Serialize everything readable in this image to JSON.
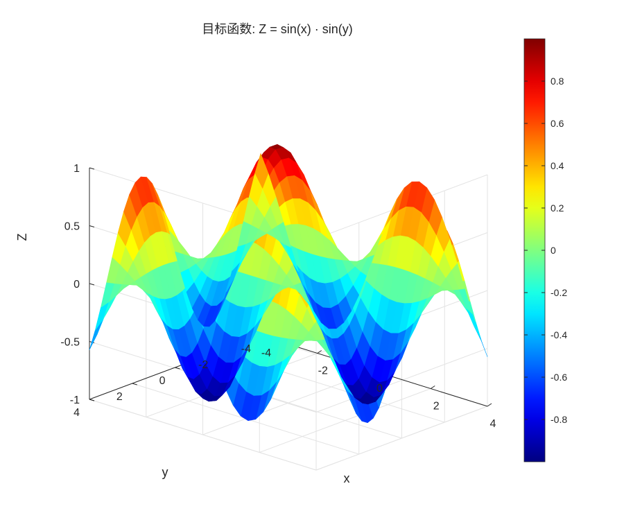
{
  "chart_data": {
    "type": "surface",
    "title": "目标函数: Z = sin(x) · sin(y)",
    "function": "Z = sin(x) · sin(y)",
    "xlabel": "x",
    "ylabel": "y",
    "zlabel": "Z",
    "xlim": [
      -4,
      4
    ],
    "ylim": [
      -4,
      4
    ],
    "zlim": [
      -1,
      1
    ],
    "x_ticks": [
      -4,
      -2,
      0,
      2,
      4
    ],
    "y_ticks": [
      -4,
      -2,
      0,
      2,
      4
    ],
    "z_ticks": [
      -1,
      -0.5,
      0,
      0.5,
      1
    ],
    "x_tick_labels": [
      "-4",
      "-2",
      "0",
      "2",
      "4"
    ],
    "y_tick_labels": [
      "-4",
      "-2",
      "0",
      "2",
      "4"
    ],
    "z_tick_labels": [
      "-1",
      "-0.5",
      "0",
      "0.5",
      "1"
    ],
    "grid": true,
    "colormap": "jet",
    "colorbar": {
      "location": "right",
      "limits": [
        -1,
        1
      ],
      "ticks": [
        0.8,
        0.6,
        0.4,
        0.2,
        0,
        -0.2,
        -0.4,
        -0.6,
        -0.8
      ],
      "tick_labels": [
        "0.8",
        "0.6",
        "0.4",
        "0.2",
        "0",
        "-0.2",
        "-0.4",
        "-0.6",
        "-0.8"
      ]
    },
    "grid_resolution": 31
  }
}
